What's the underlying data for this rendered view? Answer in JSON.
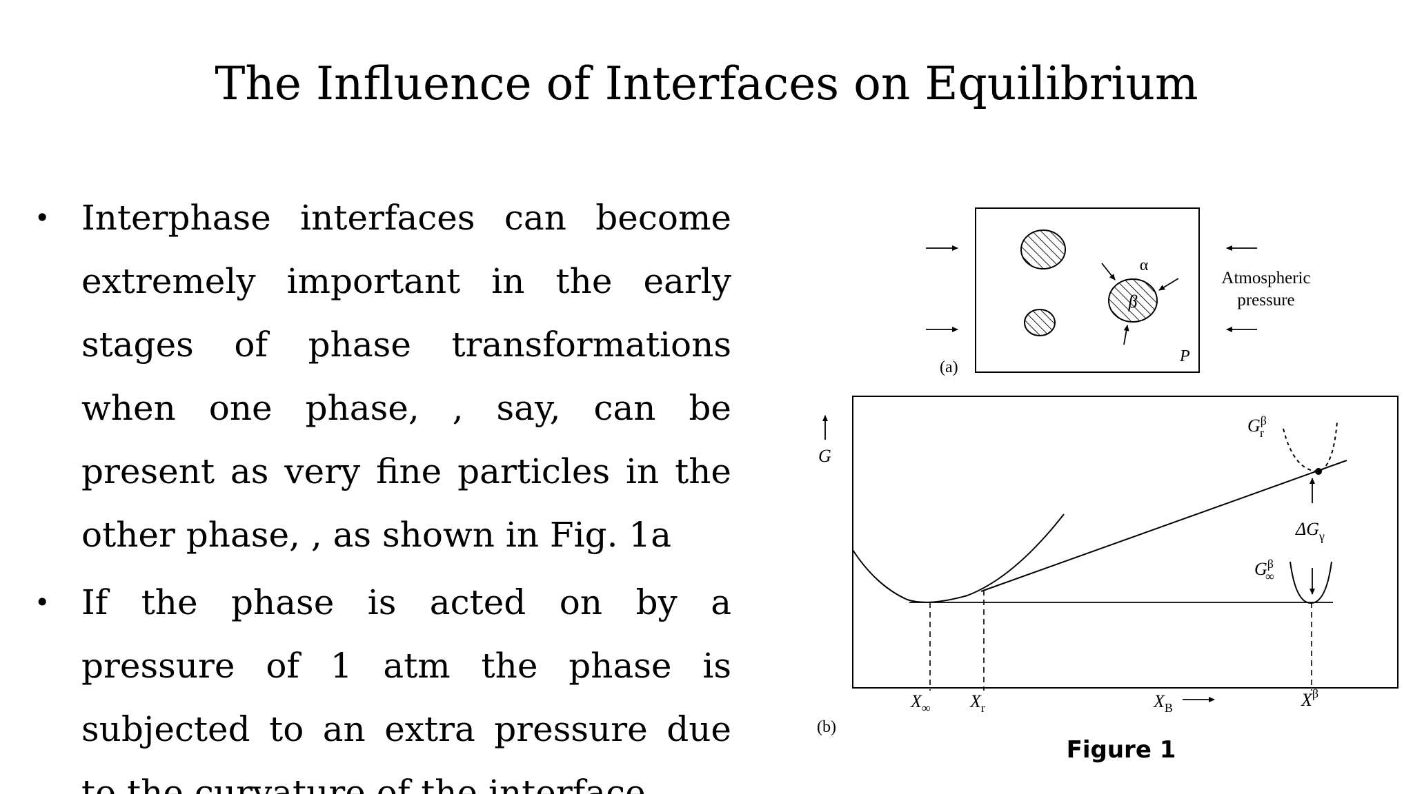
{
  "slide": {
    "title": "The Influence of Interfaces on Equilibrium",
    "bullets": [
      "Interphase interfaces can become extremely important in the early stages of phase transformations when one phase, , say, can be present as very fine particles in the other phase, , as shown in Fig. 1a",
      "If the  phase is acted on by a pressure of 1 atm the  phase is subjected to an extra pressure  due to the curvature of the interface"
    ],
    "bullet_symbol": "•"
  },
  "figure": {
    "caption": "Figure 1",
    "panel_a": {
      "label": "(a)",
      "alpha": "α",
      "beta": "β",
      "pressure_symbol": "P",
      "atmospheric_line1": "Atmospheric",
      "atmospheric_line2": "pressure"
    },
    "panel_b": {
      "label": "(b)",
      "g_axis": "G",
      "g_r": "G",
      "g_r_sup": "β",
      "g_r_sub": "r",
      "g_inf": "G",
      "g_inf_sup": "β",
      "g_inf_sub": "∞",
      "delta_g": "ΔG",
      "delta_g_sub": "γ",
      "x_inf": "X",
      "x_inf_sub": "∞",
      "x_r": "X",
      "x_r_sub": "r",
      "x_b": "X",
      "x_b_sub": "B",
      "x_beta": "X",
      "x_beta_sup": "β"
    }
  }
}
